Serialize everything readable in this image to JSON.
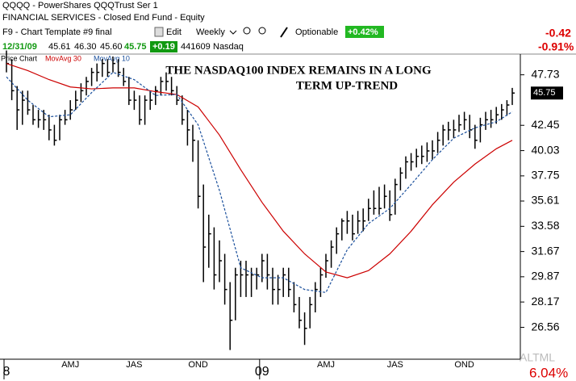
{
  "header": {
    "symbol_line": "QQQQ - PowerShares QQQTrust Ser 1",
    "sector": "FINANCIAL SERVICES - Closed End Fund - Equity",
    "template": "F9 - Chart Template #9 final",
    "edit": "Edit",
    "period": "Weekly",
    "exchange": "Nasdaq",
    "optionable": "Optionable",
    "pct_change_box": "+0.42%",
    "date": "12/31/09",
    "open": "45.61",
    "high": "46.30",
    "low": "45.60",
    "last": "45.75",
    "change": "+0.19",
    "volume": "441609",
    "right_change": "-0.42",
    "right_pct": "-0.91%"
  },
  "chart_data": {
    "type": "ohlc",
    "chart_label": "Price Chart",
    "annotation": [
      "THE NASDAQ100 INDEX REMAINS IN A LONG",
      "TERM UP-TREND"
    ],
    "categories": [
      "8",
      null,
      null,
      null,
      null,
      null,
      null,
      null,
      null,
      null,
      null,
      null,
      "AMJ",
      null,
      null,
      null,
      null,
      null,
      null,
      null,
      null,
      null,
      null,
      null,
      "JAS",
      null,
      null,
      null,
      null,
      null,
      null,
      null,
      null,
      null,
      null,
      null,
      "OND",
      null,
      null,
      null,
      null,
      null,
      null,
      null,
      null,
      null,
      null,
      null,
      "09",
      null,
      null,
      null,
      null,
      null,
      null,
      null,
      null,
      null,
      null,
      null,
      "AMJ",
      null,
      null,
      null,
      null,
      null,
      null,
      null,
      null,
      null,
      null,
      null,
      null,
      "JAS",
      null,
      null,
      null,
      null,
      null,
      null,
      null,
      null,
      null,
      null,
      null,
      null,
      "OND",
      null,
      null,
      null,
      null,
      null,
      null,
      null,
      null,
      null
    ],
    "high": [
      50.5,
      49.5,
      46.5,
      46,
      46,
      44.5,
      44,
      44,
      43.5,
      42.5,
      43.5,
      44,
      45,
      46,
      46.8,
      47.5,
      48.5,
      49,
      49.5,
      49.5,
      49.8,
      49.5,
      48.5,
      47.5,
      46,
      45.5,
      45.5,
      46,
      46.5,
      47.5,
      48,
      47.5,
      46.5,
      45.5,
      44,
      42.5,
      41,
      37,
      34.5,
      33.5,
      32.5,
      31.5,
      29.5,
      30.5,
      31,
      31,
      30.5,
      30.5,
      31.5,
      31.5,
      30.5,
      30,
      30.5,
      30.5,
      29.5,
      28.5,
      27.5,
      28.5,
      29.5,
      30.5,
      31.5,
      32.5,
      33.5,
      34.2,
      34.8,
      34.5,
      34.8,
      35,
      35.8,
      36.5,
      36.8,
      37,
      36.5,
      37.5,
      38.5,
      39.5,
      39.8,
      40.2,
      40.5,
      40.8,
      41,
      41.8,
      42.5,
      42.8,
      43,
      43.5,
      43.8,
      43.5,
      42.5,
      43.2,
      43.8,
      44,
      44.3,
      44.6,
      45,
      46.3
    ],
    "low": [
      48,
      45,
      42,
      42.5,
      43.5,
      42.5,
      42.2,
      42,
      41,
      40.5,
      41,
      42.5,
      43,
      44,
      44.8,
      45.5,
      46.5,
      47,
      47.5,
      47.5,
      48,
      47.5,
      46.5,
      44.5,
      44,
      42.5,
      42.5,
      44,
      44.5,
      45.5,
      46,
      45.5,
      44.5,
      42.5,
      40.5,
      39,
      35,
      29.5,
      30.5,
      29,
      29.5,
      28,
      25.2,
      27,
      28.5,
      28.5,
      28.5,
      29,
      29.5,
      29,
      28,
      28,
      28.5,
      28.5,
      27.5,
      26.5,
      25.5,
      26.5,
      27.5,
      28.5,
      29.8,
      30.5,
      31.5,
      32.5,
      33,
      32.5,
      33,
      33.2,
      34,
      34.5,
      34.5,
      35,
      34,
      34.5,
      36.5,
      37.5,
      38.2,
      38.5,
      38.8,
      39,
      39.2,
      39.8,
      40.5,
      41,
      41.2,
      41.8,
      42,
      41.2,
      40.2,
      40.8,
      42,
      42.2,
      42.6,
      43,
      43.4,
      44.5
    ],
    "close": [
      49,
      46,
      44,
      45,
      44,
      43,
      43,
      43,
      42,
      41,
      43,
      43,
      44,
      45,
      46,
      47,
      48,
      48,
      49,
      48,
      49,
      48,
      47,
      45,
      45,
      43,
      45,
      45,
      46,
      47,
      47,
      46,
      45,
      43,
      42,
      41,
      36,
      32,
      33,
      30,
      31,
      29,
      27,
      30,
      30,
      30,
      30,
      30,
      31,
      30,
      29,
      29,
      30,
      29,
      28,
      27,
      26.5,
      28,
      29,
      30,
      31,
      32,
      33,
      34,
      34,
      33,
      34,
      34,
      35,
      35,
      35,
      36,
      34.5,
      37,
      38,
      39,
      39,
      39.5,
      39.5,
      40,
      40,
      41,
      42,
      42,
      42,
      42.5,
      43,
      42,
      41,
      42.5,
      43,
      43,
      43.5,
      44,
      44.5,
      45.75
    ],
    "series": [
      {
        "name": "MovAvg 30",
        "color": "#cc0000",
        "dashed": false,
        "x": [
          0,
          4,
          8,
          12,
          16,
          20,
          24,
          28,
          32,
          36,
          40,
          44,
          48,
          52,
          56,
          60,
          64,
          68,
          72,
          76,
          80,
          84,
          88,
          92,
          95
        ],
        "values": [
          49,
          48.2,
          47.2,
          46.4,
          46.2,
          46.3,
          46.3,
          45.9,
          45.6,
          44.3,
          41.5,
          38.3,
          35.5,
          33.2,
          31.5,
          30.2,
          29.8,
          30.3,
          31.5,
          33.2,
          35.3,
          37.2,
          38.8,
          40.2,
          41
        ]
      },
      {
        "name": "MovAvg 10",
        "color": "#1a4f9c",
        "dashed": true,
        "x": [
          0,
          4,
          8,
          12,
          16,
          20,
          24,
          28,
          32,
          36,
          40,
          44,
          48,
          52,
          56,
          60,
          64,
          68,
          72,
          76,
          80,
          84,
          88,
          92,
          95
        ],
        "values": [
          47.5,
          45,
          43.3,
          43.5,
          45.8,
          48,
          47.2,
          45.5,
          45.6,
          42.5,
          36.5,
          30.5,
          29.8,
          29.8,
          29,
          28.8,
          31.8,
          33.8,
          35,
          37,
          39.2,
          41.2,
          42.2,
          42.8,
          43.8
        ]
      }
    ],
    "ylim": [
      24.9,
      49.8
    ],
    "log_scale": true,
    "yticks": [
      47.73,
      42.45,
      40.03,
      37.75,
      35.61,
      33.58,
      31.67,
      29.87,
      28.17,
      26.56
    ],
    "last_price": 45.75,
    "bar_color": "#000000",
    "footer_left": "ALTML",
    "footer_right": "6.04%"
  }
}
